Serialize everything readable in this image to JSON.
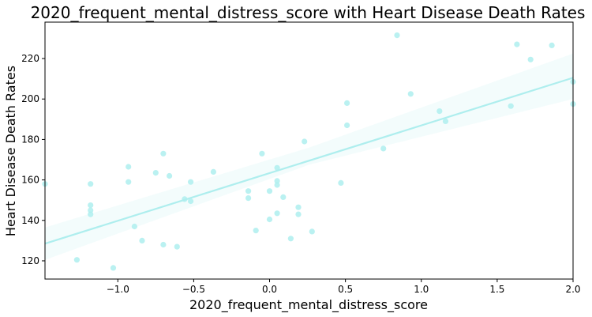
{
  "chart_data": {
    "type": "scatter",
    "title": "2020_frequent_mental_distress_score with Heart Disease Death Rates",
    "xlabel": "2020_frequent_mental_distress_score",
    "ylabel": "Heart Disease Death Rates",
    "xlim": [
      -1.48,
      2.0
    ],
    "ylim": [
      111,
      238
    ],
    "xticks": [
      -1.0,
      -0.5,
      0.0,
      0.5,
      1.0,
      1.5,
      2.0
    ],
    "xtick_labels": [
      "−1.0",
      "−0.5",
      "0.0",
      "0.5",
      "1.0",
      "1.5",
      "2.0"
    ],
    "yticks": [
      120,
      140,
      160,
      180,
      200,
      220
    ],
    "ytick_labels": [
      "120",
      "140",
      "160",
      "180",
      "200",
      "220"
    ],
    "grid": false,
    "color": "#aeeeee",
    "points": [
      [
        -1.48,
        158
      ],
      [
        -1.27,
        120.5
      ],
      [
        -1.18,
        158
      ],
      [
        -1.18,
        147.5
      ],
      [
        -1.18,
        145
      ],
      [
        -1.18,
        143
      ],
      [
        -1.03,
        116.5
      ],
      [
        -0.93,
        166.5
      ],
      [
        -0.93,
        159
      ],
      [
        -0.89,
        137
      ],
      [
        -0.84,
        130
      ],
      [
        -0.75,
        163.5
      ],
      [
        -0.7,
        173
      ],
      [
        -0.7,
        128
      ],
      [
        -0.66,
        162
      ],
      [
        -0.61,
        127
      ],
      [
        -0.56,
        150.5
      ],
      [
        -0.52,
        159
      ],
      [
        -0.52,
        149.5
      ],
      [
        -0.37,
        164
      ],
      [
        -0.14,
        154.5
      ],
      [
        -0.14,
        151
      ],
      [
        -0.09,
        135
      ],
      [
        -0.05,
        173
      ],
      [
        0.0,
        154.5
      ],
      [
        0.0,
        140.5
      ],
      [
        0.05,
        166
      ],
      [
        0.05,
        159.5
      ],
      [
        0.05,
        157.5
      ],
      [
        0.05,
        143.5
      ],
      [
        0.09,
        151.5
      ],
      [
        0.14,
        131
      ],
      [
        0.19,
        146.5
      ],
      [
        0.19,
        143
      ],
      [
        0.23,
        179
      ],
      [
        0.28,
        134.5
      ],
      [
        0.47,
        158.5
      ],
      [
        0.51,
        198
      ],
      [
        0.51,
        187
      ],
      [
        0.75,
        175.5
      ],
      [
        0.84,
        231.5
      ],
      [
        0.93,
        202.5
      ],
      [
        1.12,
        194
      ],
      [
        1.16,
        189
      ],
      [
        1.59,
        196.5
      ],
      [
        1.63,
        227
      ],
      [
        1.72,
        219.5
      ],
      [
        1.86,
        226.5
      ],
      [
        2.0,
        208.5
      ],
      [
        2.0,
        197.5
      ]
    ],
    "regression": {
      "x": [
        -1.48,
        2.0
      ],
      "y": [
        128.5,
        210.5
      ],
      "ci_lower": [
        120.5,
        200.0
      ],
      "ci_upper": [
        136.5,
        222.5
      ],
      "ci_mid_x": 0.26,
      "ci_mid_lower": 167.5,
      "ci_mid_upper": 176.0
    }
  }
}
